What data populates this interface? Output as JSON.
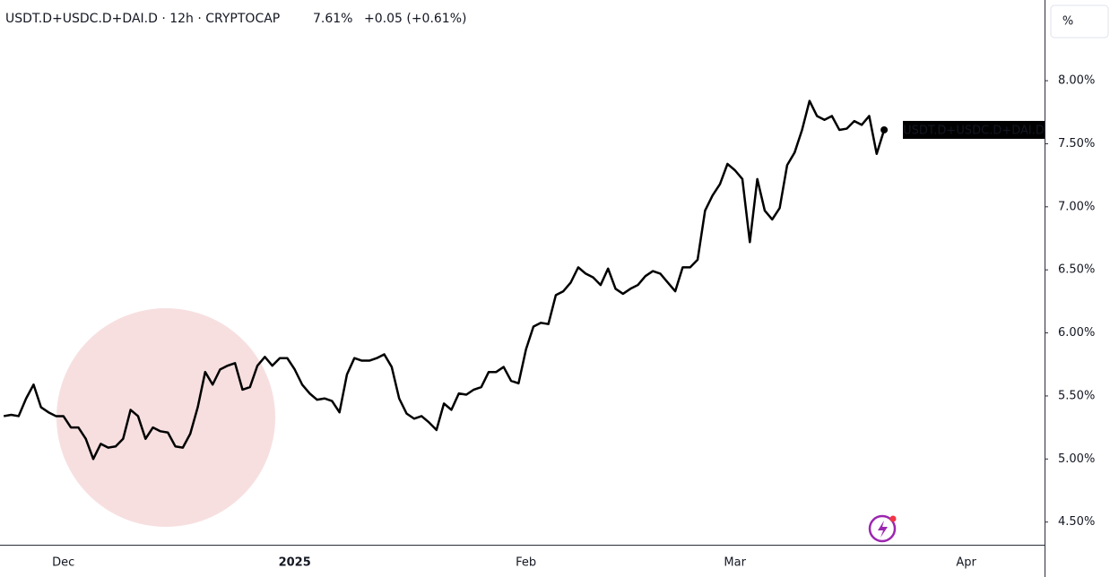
{
  "chart_data": {
    "type": "line",
    "title": "USDT.D+USDC.D+DAI.D · 12h · CRYPTOCAP",
    "last_price": "7.61%",
    "change": "+0.05 (+0.61%)",
    "unit_button": "%",
    "categories": [
      null,
      null,
      null,
      null,
      null,
      null,
      null,
      null,
      "Dec",
      null,
      null,
      null,
      null,
      null,
      null,
      null,
      null,
      null,
      null,
      null,
      null,
      null,
      null,
      null,
      null,
      null,
      null,
      null,
      null,
      null,
      null,
      null,
      null,
      null,
      null,
      null,
      null,
      null,
      null,
      "2025",
      null,
      null,
      null,
      null,
      null,
      null,
      null,
      null,
      null,
      null,
      null,
      null,
      null,
      null,
      null,
      null,
      null,
      null,
      null,
      null,
      null,
      null,
      null,
      null,
      null,
      null,
      null,
      null,
      null,
      null,
      "Feb",
      null,
      null,
      null,
      null,
      null,
      null,
      null,
      null,
      null,
      null,
      null,
      null,
      null,
      null,
      null,
      null,
      null,
      null,
      null,
      null,
      null,
      null,
      null,
      null,
      null,
      null,
      null,
      "Mar",
      null,
      null,
      null,
      null,
      null,
      null,
      null,
      null,
      null,
      null,
      null,
      null,
      null,
      null,
      null,
      null,
      null,
      null,
      null,
      null,
      null,
      null,
      null,
      null,
      null,
      null,
      null,
      null,
      null,
      null,
      "Apr",
      null,
      null,
      null,
      null,
      null,
      null,
      null,
      null,
      null,
      null
    ],
    "series": [
      {
        "name": "USDT.D+USDC.D+DAI.D",
        "color": "#000000",
        "values": [
          5.34,
          5.35,
          5.34,
          5.48,
          5.59,
          5.41,
          5.37,
          5.34,
          5.34,
          5.25,
          5.25,
          5.16,
          5.0,
          5.12,
          5.09,
          5.1,
          5.16,
          5.39,
          5.34,
          5.16,
          5.25,
          5.22,
          5.21,
          5.1,
          5.09,
          5.2,
          5.41,
          5.69,
          5.59,
          5.71,
          5.74,
          5.76,
          5.55,
          5.57,
          5.74,
          5.81,
          5.74,
          5.8,
          5.8,
          5.71,
          5.59,
          5.52,
          5.47,
          5.48,
          5.46,
          5.37,
          5.67,
          5.8,
          5.78,
          5.78,
          5.8,
          5.83,
          5.73,
          5.48,
          5.36,
          5.32,
          5.34,
          5.29,
          5.23,
          5.44,
          5.39,
          5.52,
          5.51,
          5.55,
          5.57,
          5.69,
          5.69,
          5.73,
          5.62,
          5.6,
          5.87,
          6.05,
          6.08,
          6.07,
          6.3,
          6.33,
          6.4,
          6.52,
          6.47,
          6.44,
          6.38,
          6.51,
          6.35,
          6.31,
          6.35,
          6.38,
          6.45,
          6.49,
          6.47,
          6.4,
          6.33,
          6.52,
          6.52,
          6.58,
          6.97,
          7.09,
          7.18,
          7.34,
          7.29,
          7.22,
          6.72,
          7.22,
          6.97,
          6.9,
          6.99,
          7.33,
          7.43,
          7.61,
          7.84,
          7.72,
          7.69,
          7.72,
          7.61,
          7.62,
          7.68,
          7.65,
          7.72,
          7.42,
          7.61,
          null,
          null,
          null,
          null,
          null,
          null,
          null,
          null,
          null,
          null,
          null,
          null,
          null,
          null,
          null,
          null,
          null,
          null,
          null,
          null,
          null
        ]
      }
    ],
    "ylim": [
      4.32,
      8.64
    ],
    "yticks": [
      {
        "value": 4.5,
        "label": "4.50%"
      },
      {
        "value": 5,
        "label": "5.00%"
      },
      {
        "value": 5.5,
        "label": "5.50%"
      },
      {
        "value": 6,
        "label": "6.00%"
      },
      {
        "value": 6.5,
        "label": "6.50%"
      },
      {
        "value": 7,
        "label": "7.00%"
      },
      {
        "value": 7.5,
        "label": "7.50%"
      },
      {
        "value": 8,
        "label": "8.00%"
      }
    ],
    "grid": false
  }
}
